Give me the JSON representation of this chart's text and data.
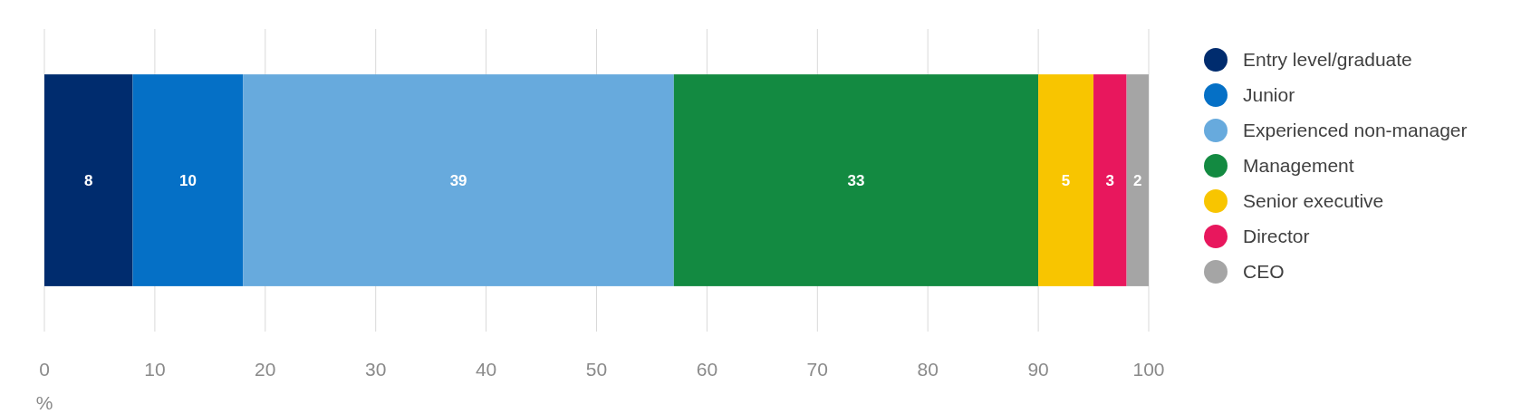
{
  "chart_data": {
    "type": "bar",
    "orientation": "horizontal",
    "stacked": true,
    "categories": [
      null
    ],
    "series": [
      {
        "name": "Entry level/graduate",
        "color": "#002c6e",
        "values": [
          8
        ]
      },
      {
        "name": "Junior",
        "color": "#0570c6",
        "values": [
          10
        ]
      },
      {
        "name": "Experienced non-manager",
        "color": "#67aadd",
        "values": [
          39
        ]
      },
      {
        "name": "Management",
        "color": "#138a41",
        "values": [
          33
        ]
      },
      {
        "name": "Senior executive",
        "color": "#f8c500",
        "values": [
          5
        ]
      },
      {
        "name": "Director",
        "color": "#e8175d",
        "values": [
          3
        ]
      },
      {
        "name": "CEO",
        "color": "#a5a5a5",
        "values": [
          2
        ]
      }
    ],
    "xlim": [
      0,
      100
    ],
    "xticks": [
      0,
      10,
      20,
      30,
      40,
      50,
      60,
      70,
      80,
      90,
      100
    ],
    "xlabel": "%",
    "grid": "x",
    "legend": "right",
    "data_labels": true,
    "tick_labels": "x"
  }
}
